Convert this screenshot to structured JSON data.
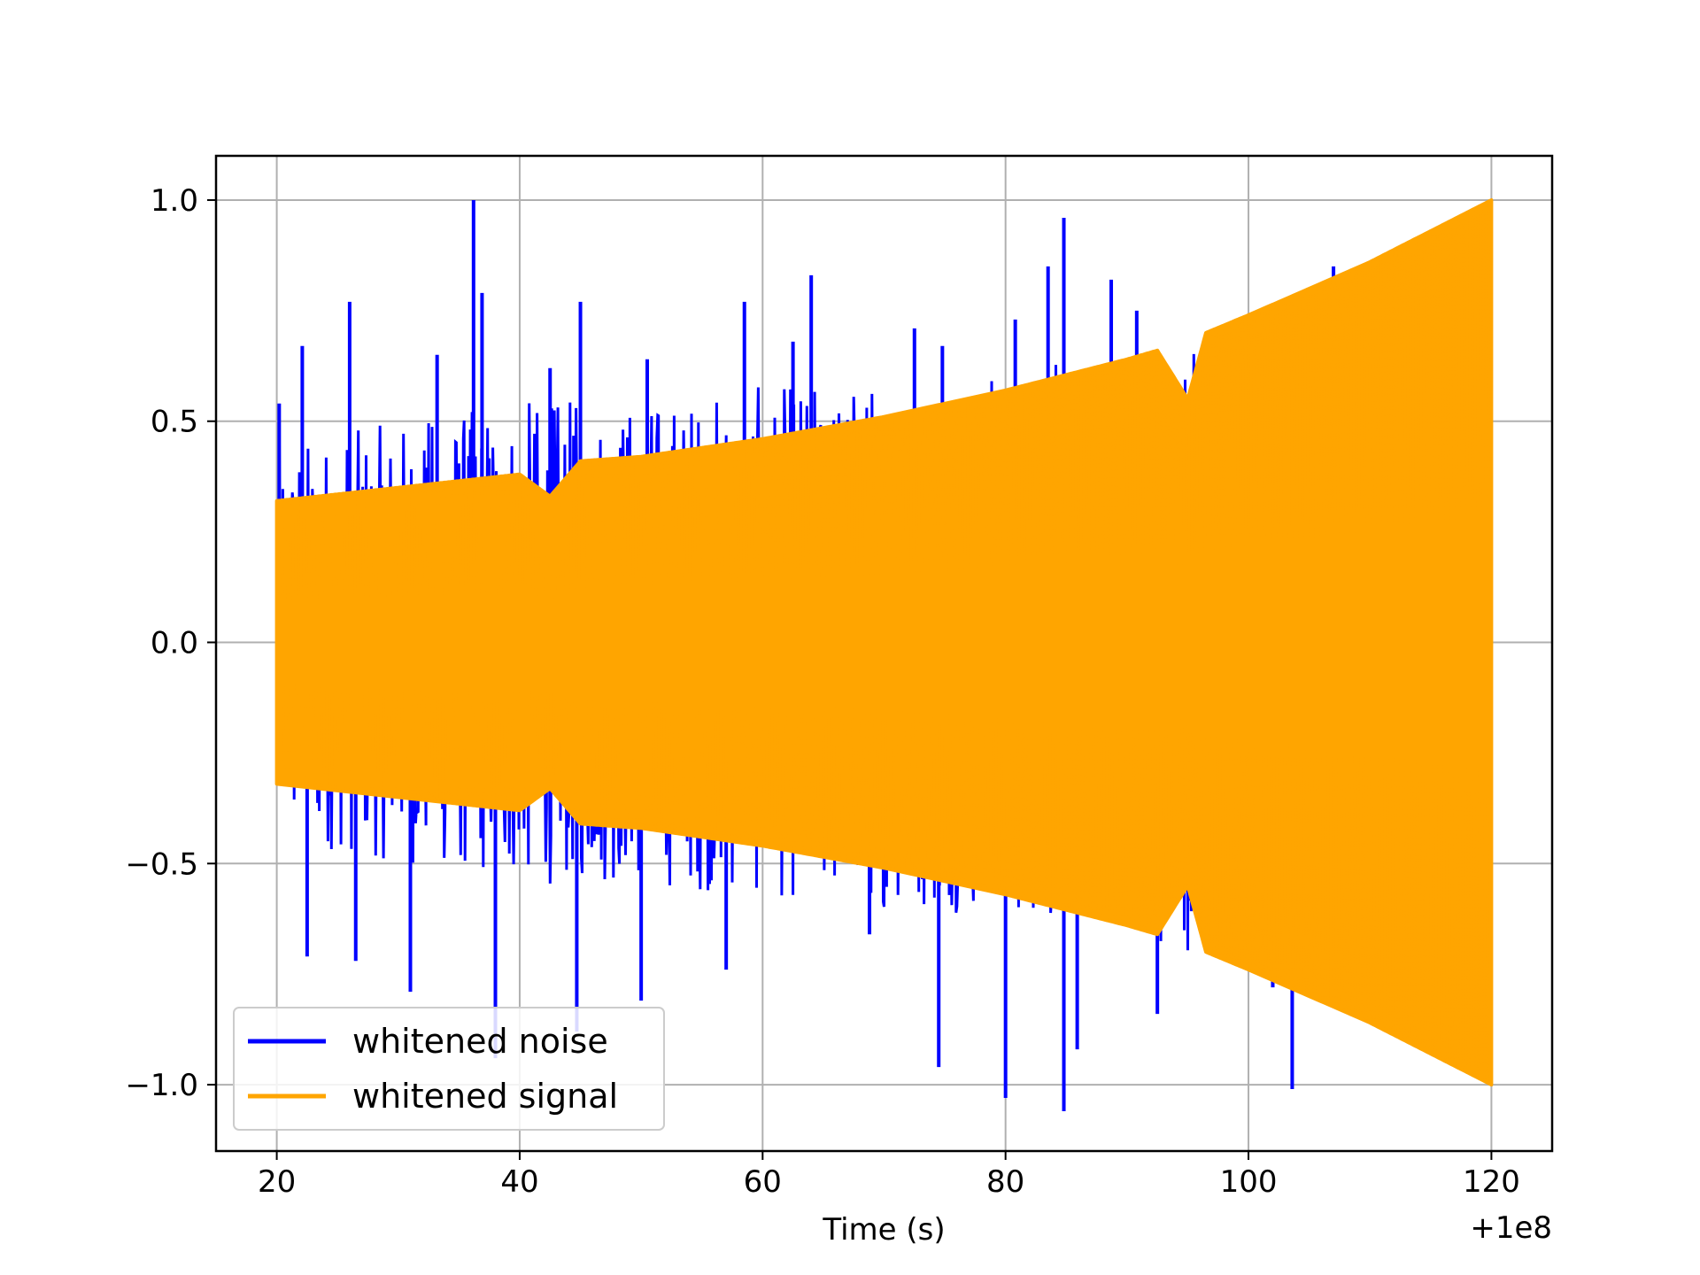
{
  "chart_data": {
    "type": "line",
    "title": "",
    "xlabel": "Time (s)",
    "ylabel": "",
    "x_offset_label": "+1e8",
    "xlim": [
      15,
      125
    ],
    "ylim": [
      -1.15,
      1.1
    ],
    "x_ticks": [
      20,
      40,
      60,
      80,
      100,
      120
    ],
    "x_tick_labels": [
      "20",
      "40",
      "60",
      "80",
      "100",
      "120"
    ],
    "y_ticks": [
      -1.0,
      -0.5,
      0.0,
      0.5,
      1.0
    ],
    "y_tick_labels": [
      "−1.0",
      "−0.5",
      "0.0",
      "0.5",
      "1.0"
    ],
    "grid": true,
    "legend_position": "lower-left",
    "series": [
      {
        "name": "whitened noise",
        "color": "#0000ff",
        "x_range": [
          20,
          120
        ],
        "upper_envelope": [
          {
            "x": 20,
            "y": 0.45
          },
          {
            "x": 30,
            "y": 0.5
          },
          {
            "x": 40,
            "y": 0.55
          },
          {
            "x": 50,
            "y": 0.55
          },
          {
            "x": 60,
            "y": 0.58
          },
          {
            "x": 70,
            "y": 0.6
          },
          {
            "x": 80,
            "y": 0.62
          },
          {
            "x": 90,
            "y": 0.65
          },
          {
            "x": 100,
            "y": 0.75
          },
          {
            "x": 110,
            "y": 0.8
          },
          {
            "x": 120,
            "y": 0.9
          }
        ],
        "lower_envelope": [
          {
            "x": 20,
            "y": -0.45
          },
          {
            "x": 30,
            "y": -0.5
          },
          {
            "x": 40,
            "y": -0.55
          },
          {
            "x": 50,
            "y": -0.55
          },
          {
            "x": 60,
            "y": -0.58
          },
          {
            "x": 70,
            "y": -0.6
          },
          {
            "x": 80,
            "y": -0.62
          },
          {
            "x": 90,
            "y": -0.65
          },
          {
            "x": 100,
            "y": -0.75
          },
          {
            "x": 110,
            "y": -0.8
          },
          {
            "x": 120,
            "y": -0.9
          }
        ],
        "spikes": [
          {
            "x": 36.2,
            "y": 1.0
          },
          {
            "x": 84.8,
            "y": 0.96
          },
          {
            "x": 64.0,
            "y": 0.83
          },
          {
            "x": 83.5,
            "y": 0.85
          },
          {
            "x": 88.7,
            "y": 0.82
          },
          {
            "x": 107.0,
            "y": 0.85
          },
          {
            "x": 26.0,
            "y": 0.77
          },
          {
            "x": 36.9,
            "y": 0.79
          },
          {
            "x": 58.5,
            "y": 0.77
          },
          {
            "x": 80.8,
            "y": 0.73
          },
          {
            "x": 45.0,
            "y": 0.77
          },
          {
            "x": 90.8,
            "y": 0.75
          },
          {
            "x": 22.1,
            "y": 0.67
          },
          {
            "x": 20.2,
            "y": 0.54
          },
          {
            "x": 33.2,
            "y": 0.65
          },
          {
            "x": 42.5,
            "y": 0.62
          },
          {
            "x": 72.5,
            "y": 0.71
          },
          {
            "x": 50.5,
            "y": 0.64
          },
          {
            "x": 96.8,
            "y": 0.66
          },
          {
            "x": 62.5,
            "y": 0.68
          },
          {
            "x": 74.8,
            "y": 0.67
          },
          {
            "x": 84.8,
            "y": -1.06
          },
          {
            "x": 80.0,
            "y": -1.03
          },
          {
            "x": 103.6,
            "y": -1.01
          },
          {
            "x": 74.5,
            "y": -0.96
          },
          {
            "x": 92.5,
            "y": -0.84
          },
          {
            "x": 38.0,
            "y": -0.94
          },
          {
            "x": 31.0,
            "y": -0.79
          },
          {
            "x": 22.5,
            "y": -0.71
          },
          {
            "x": 44.7,
            "y": -0.88
          },
          {
            "x": 50.0,
            "y": -0.81
          },
          {
            "x": 68.8,
            "y": -0.66
          },
          {
            "x": 85.9,
            "y": -0.92
          },
          {
            "x": 102.0,
            "y": -0.78
          },
          {
            "x": 26.5,
            "y": -0.72
          },
          {
            "x": 57.0,
            "y": -0.74
          }
        ]
      },
      {
        "name": "whitened signal",
        "color": "#ffa500",
        "x_range": [
          20,
          120
        ],
        "envelope": [
          {
            "x": 20,
            "y": 0.32
          },
          {
            "x": 30,
            "y": 0.35
          },
          {
            "x": 40,
            "y": 0.38
          },
          {
            "x": 42.5,
            "y": 0.33
          },
          {
            "x": 45,
            "y": 0.41
          },
          {
            "x": 50,
            "y": 0.42
          },
          {
            "x": 60,
            "y": 0.46
          },
          {
            "x": 70,
            "y": 0.51
          },
          {
            "x": 80,
            "y": 0.57
          },
          {
            "x": 90,
            "y": 0.64
          },
          {
            "x": 92.5,
            "y": 0.66
          },
          {
            "x": 95,
            "y": 0.55
          },
          {
            "x": 96.5,
            "y": 0.7
          },
          {
            "x": 100,
            "y": 0.74
          },
          {
            "x": 110,
            "y": 0.86
          },
          {
            "x": 120,
            "y": 1.0
          }
        ]
      }
    ]
  }
}
